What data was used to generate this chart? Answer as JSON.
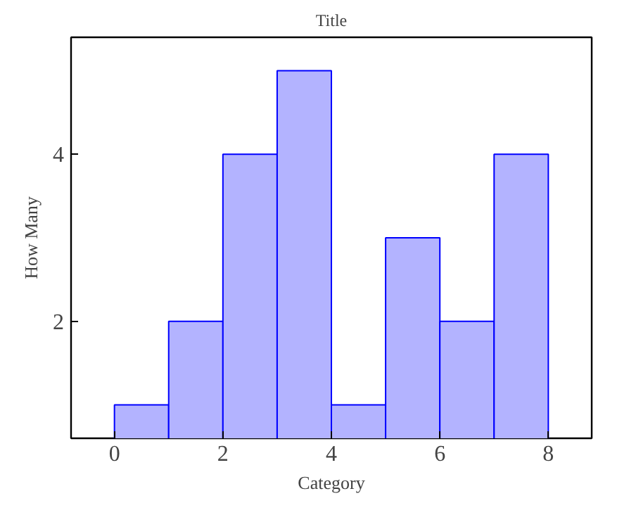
{
  "chart_data": {
    "type": "histogram",
    "title": "Title",
    "xlabel": "Category",
    "ylabel": "How Many",
    "bins": [
      0,
      1,
      2,
      3,
      4,
      5,
      6,
      7,
      8
    ],
    "values": [
      1,
      2,
      4,
      5,
      1,
      3,
      2,
      4
    ],
    "color": "#b3b3ff",
    "xlim": [
      -0.8,
      8.8
    ],
    "ylim": [
      0.6,
      5.4
    ],
    "xticks": [
      0,
      2,
      4,
      6,
      8
    ],
    "yticks": [
      2,
      4
    ],
    "grid": false
  }
}
